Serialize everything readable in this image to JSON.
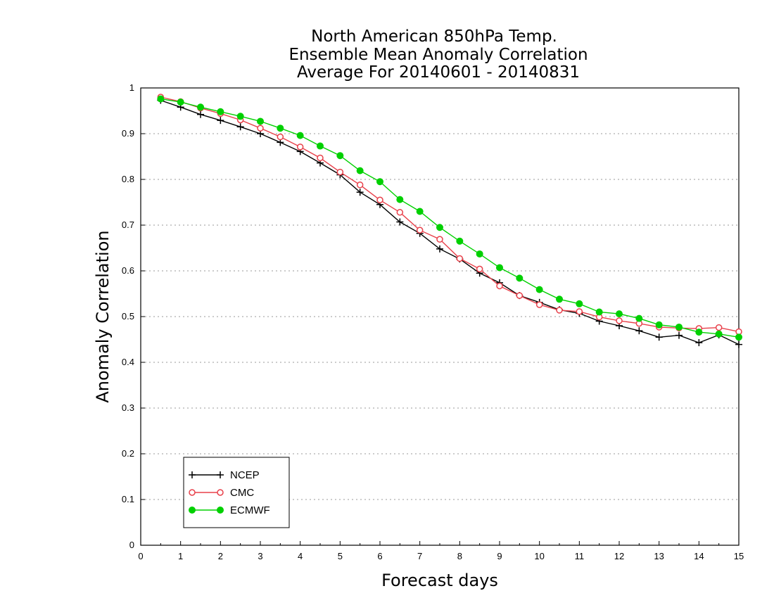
{
  "chart_data": {
    "type": "line",
    "title": [
      "North American 850hPa Temp.",
      "Ensemble Mean Anomaly Correlation",
      "Average For 20140601 - 20140831"
    ],
    "xlabel": "Forecast days",
    "ylabel": "Anomaly Correlation",
    "xlim": [
      0,
      15
    ],
    "ylim": [
      0,
      1
    ],
    "xticks": [
      "0",
      "1",
      "2",
      "3",
      "4",
      "5",
      "6",
      "7",
      "8",
      "9",
      "10",
      "11",
      "12",
      "13",
      "14",
      "15"
    ],
    "yticks": [
      "0",
      "0.1",
      "0.2",
      "0.3",
      "0.4",
      "0.5",
      "0.6",
      "0.7",
      "0.8",
      "0.9",
      "1"
    ],
    "grid": "horizontal dotted",
    "legend_position": "bottom-left",
    "x": [
      0.5,
      1,
      1.5,
      2,
      2.5,
      3,
      3.5,
      4,
      4.5,
      5,
      5.5,
      6,
      6.5,
      7,
      7.5,
      8,
      8.5,
      9,
      9.5,
      10,
      10.5,
      11,
      11.5,
      12,
      12.5,
      13,
      13.5,
      14,
      14.5,
      15
    ],
    "series": [
      {
        "name": "NCEP",
        "color": "#000000",
        "marker": "plus",
        "values": [
          0.973,
          0.958,
          0.942,
          0.929,
          0.915,
          0.9,
          0.881,
          0.861,
          0.836,
          0.81,
          0.772,
          0.745,
          0.707,
          0.682,
          0.648,
          0.626,
          0.595,
          0.574,
          0.546,
          0.531,
          0.515,
          0.507,
          0.49,
          0.48,
          0.469,
          0.455,
          0.459,
          0.443,
          0.46,
          0.439
        ]
      },
      {
        "name": "CMC",
        "color": "#e8404a",
        "marker": "open-circle",
        "values": [
          0.98,
          0.97,
          0.956,
          0.944,
          0.93,
          0.912,
          0.893,
          0.871,
          0.847,
          0.816,
          0.788,
          0.755,
          0.728,
          0.689,
          0.669,
          0.627,
          0.604,
          0.567,
          0.546,
          0.526,
          0.514,
          0.511,
          0.499,
          0.491,
          0.485,
          0.477,
          0.475,
          0.474,
          0.476,
          0.467
        ]
      },
      {
        "name": "ECMWF",
        "color": "#00d000",
        "marker": "filled-circle",
        "values": [
          0.976,
          0.969,
          0.958,
          0.948,
          0.938,
          0.927,
          0.912,
          0.896,
          0.873,
          0.852,
          0.819,
          0.795,
          0.756,
          0.73,
          0.695,
          0.665,
          0.637,
          0.607,
          0.584,
          0.559,
          0.538,
          0.528,
          0.51,
          0.506,
          0.496,
          0.482,
          0.477,
          0.466,
          0.462,
          0.455
        ]
      }
    ]
  }
}
